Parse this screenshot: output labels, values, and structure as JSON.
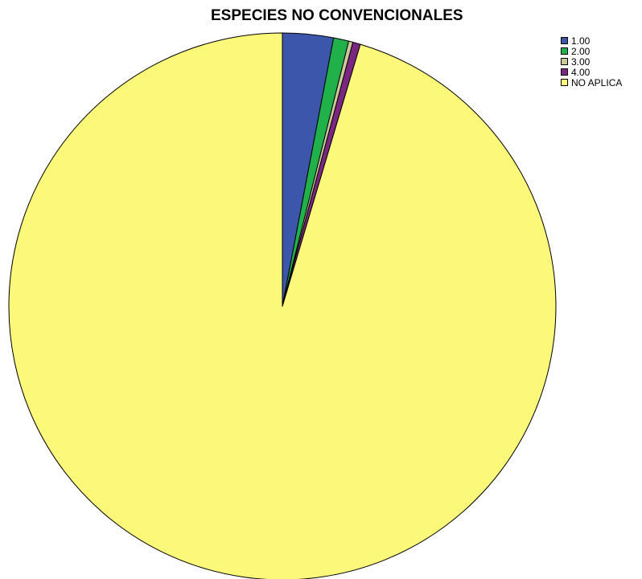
{
  "chart_data": {
    "type": "pie",
    "title": "ESPECIES NO CONVENCIONALES",
    "legend_position": "top-right",
    "slices": [
      {
        "label": "1.00",
        "value": 3.0,
        "color": "#3c56ac"
      },
      {
        "label": "2.00",
        "value": 0.9,
        "color": "#21b14a"
      },
      {
        "label": "3.00",
        "value": 0.25,
        "color": "#cdc897"
      },
      {
        "label": "4.00",
        "value": 0.45,
        "color": "#7b2681"
      },
      {
        "label": "NO APLICA",
        "value": 95.4,
        "color": "#fbf87a"
      }
    ]
  }
}
